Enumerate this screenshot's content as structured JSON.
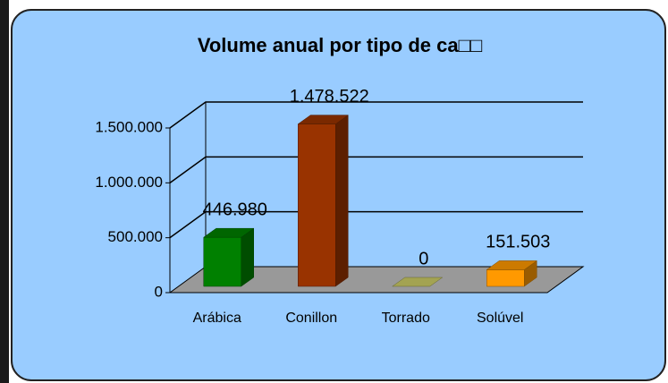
{
  "chart_data": {
    "type": "bar3d",
    "title": "Volume anual por tipo de ca□□",
    "categories": [
      "Arábica",
      "Conillon",
      "Torrado",
      "Solúvel"
    ],
    "values": [
      446980,
      1478522,
      0,
      151503
    ],
    "value_labels": [
      "446.980",
      "1.478.522",
      "0",
      "151.503"
    ],
    "colors": [
      "#008000",
      "#993300",
      "#cccc66",
      "#ff9900"
    ],
    "ylim": [
      0,
      1500000
    ],
    "yticks": [
      0,
      {
        "value": 500000,
        "label": "500.000"
      },
      {
        "value": 1000000,
        "label": "1.000.000"
      },
      {
        "value": 1500000,
        "label": "1.500.000"
      }
    ],
    "grid": true
  }
}
